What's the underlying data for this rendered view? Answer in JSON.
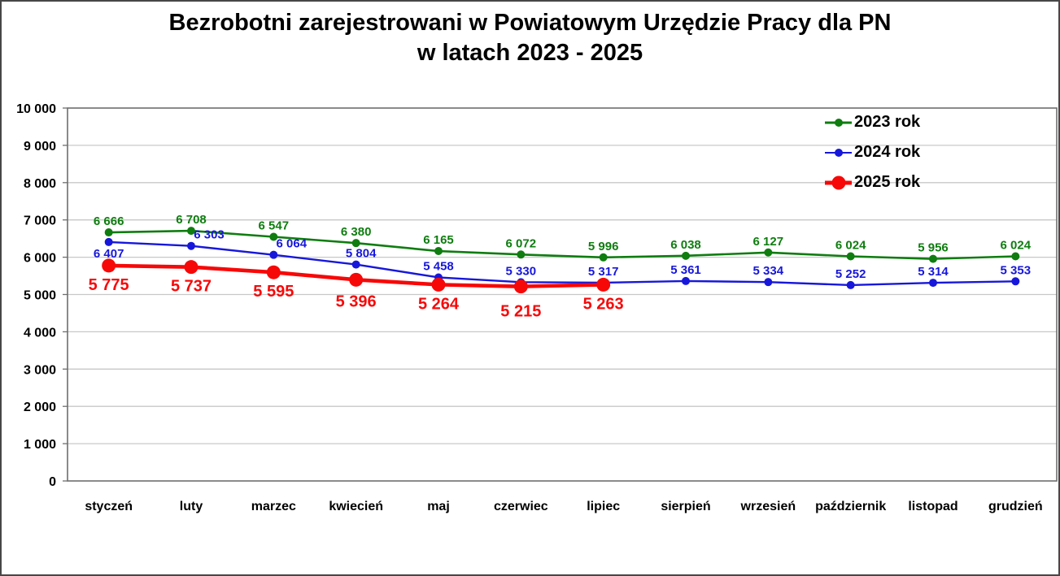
{
  "title": {
    "line1": "Bezrobotni zarejestrowani w Powiatowym Urzędzie Pracy dla PN",
    "line2": "w latach 2023 - 2025"
  },
  "chart_data": {
    "type": "line",
    "title": "Bezrobotni zarejestrowani w Powiatowym Urzędzie Pracy dla PN w latach 2023 - 2025",
    "categories": [
      "styczeń",
      "luty",
      "marzec",
      "kwiecień",
      "maj",
      "czerwiec",
      "lipiec",
      "sierpień",
      "wrzesień",
      "październik",
      "listopad",
      "grudzień"
    ],
    "series": [
      {
        "name": "2023 rok",
        "color": "#0F7D10",
        "values": [
          6666,
          6708,
          6547,
          6380,
          6165,
          6072,
          5996,
          6038,
          6127,
          6024,
          5956,
          6024
        ],
        "line_width": 2.6,
        "marker_radius": 5,
        "label_position": "above",
        "label_font_size": 15
      },
      {
        "name": "2024 rok",
        "color": "#1717DB",
        "values": [
          6407,
          6303,
          6064,
          5804,
          5458,
          5330,
          5317,
          5361,
          5334,
          5252,
          5314,
          5353
        ],
        "line_width": 2.4,
        "marker_radius": 5,
        "label_position": "above",
        "label_font_size": 15
      },
      {
        "name": "2025 rok",
        "color": "#F70808",
        "values": [
          5775,
          5737,
          5595,
          5396,
          5264,
          5215,
          5263
        ],
        "line_width": 4.6,
        "marker_radius": 8.5,
        "label_position": "below",
        "label_font_size": 20
      }
    ],
    "ylim": [
      0,
      10000
    ],
    "ytick_step": 1000,
    "ytick_labels": [
      "0",
      "1 000",
      "2 000",
      "3 000",
      "4 000",
      "5 000",
      "6 000",
      "7 000",
      "8 000",
      "9 000",
      "10 000"
    ],
    "grid": "horizontal-only",
    "legend_position": "top-right-inside",
    "axis_color": "#6E6E6E",
    "gridline_color": "#C8C8C8",
    "text_color": "#000000"
  }
}
